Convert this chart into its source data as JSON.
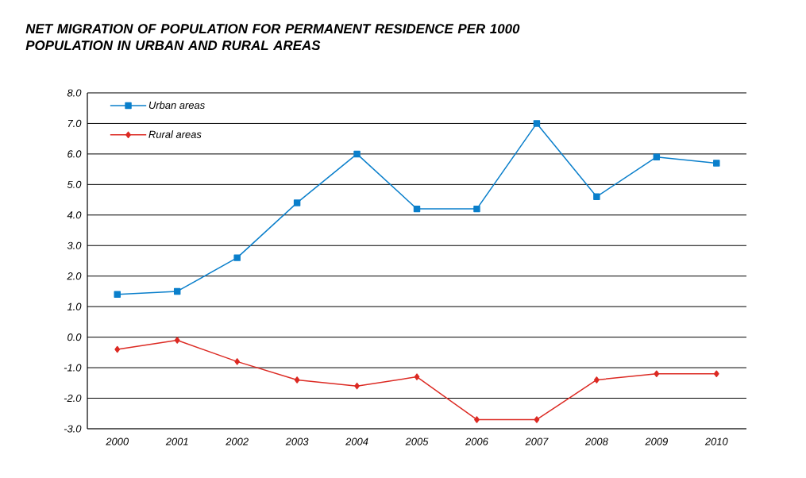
{
  "chart_data": {
    "type": "line",
    "title": "NET MIGRATION OF POPULATION FOR PERMANENT RESIDENCE PER 1000 POPULATION IN URBAN AND RURAL AREAS",
    "categories": [
      "2000",
      "2001",
      "2002",
      "2003",
      "2004",
      "2005",
      "2006",
      "2007",
      "2008",
      "2009",
      "2010"
    ],
    "series": [
      {
        "name": "Urban areas",
        "color": "#0a7fcb",
        "marker": "square",
        "values": [
          1.4,
          1.5,
          2.6,
          4.4,
          6.0,
          4.2,
          4.2,
          7.0,
          4.6,
          5.9,
          5.7
        ]
      },
      {
        "name": "Rural areas",
        "color": "#dc2a23",
        "marker": "diamond",
        "values": [
          -0.4,
          -0.1,
          -0.8,
          -1.4,
          -1.6,
          -1.3,
          -2.7,
          -2.7,
          -1.4,
          -1.2,
          -1.2
        ]
      }
    ],
    "ylim": [
      -3,
      8
    ],
    "yticks": [
      {
        "value": -3,
        "label": "-3.0"
      },
      {
        "value": -2,
        "label": "-2.0"
      },
      {
        "value": -1,
        "label": "-1.0"
      },
      {
        "value": 0,
        "label": "0.0"
      },
      {
        "value": 1,
        "label": "1.0"
      },
      {
        "value": 2,
        "label": "2.0"
      },
      {
        "value": 3,
        "label": "3.0"
      },
      {
        "value": 4,
        "label": "4.0"
      },
      {
        "value": 5,
        "label": "5.0"
      },
      {
        "value": 6,
        "label": "6.0"
      },
      {
        "value": 7,
        "label": "7.0"
      },
      {
        "value": 8,
        "label": "8.0"
      }
    ],
    "grid": "y",
    "legend": "top left"
  }
}
